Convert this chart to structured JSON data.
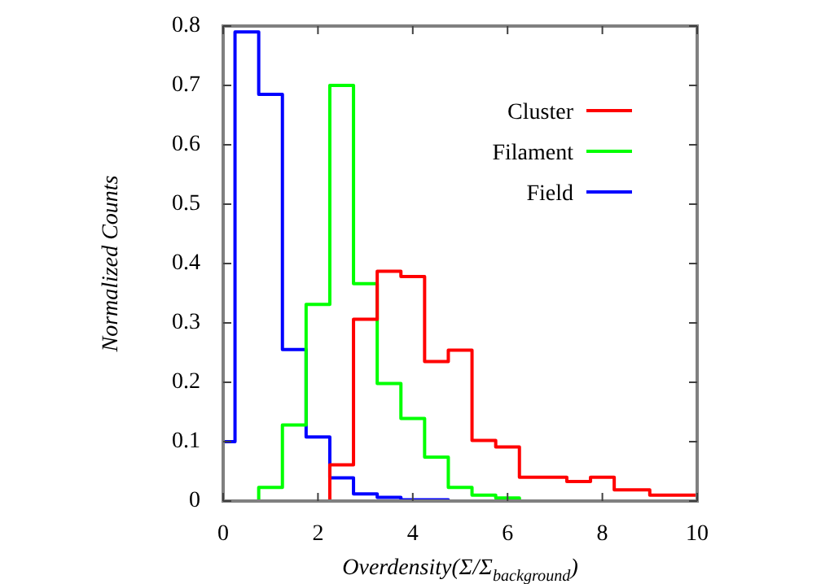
{
  "chart_data": {
    "type": "step",
    "xlabel": "Overdensity(Σ/Σ$_{background}$)",
    "ylabel": "Normalized Counts",
    "xlim": [
      0,
      10
    ],
    "xticks": [
      0,
      2,
      4,
      6,
      8,
      10
    ],
    "ylim": [
      0,
      0.8
    ],
    "yticks": [
      0,
      0.1,
      0.2,
      0.3,
      0.4,
      0.5,
      0.6,
      0.7,
      0.8
    ],
    "grid": false,
    "legend": "top right",
    "series": [
      {
        "name": "Cluster",
        "color": "#ff0000",
        "x": [
          2.25,
          2.25,
          2.75,
          3.25,
          3.75,
          4.25,
          4.75,
          5.25,
          5.75,
          6.25,
          7.25,
          7.75,
          8.25,
          9.0,
          10
        ],
        "values": [
          0,
          0.061,
          0.306,
          0.387,
          0.378,
          0.235,
          0.254,
          0.102,
          0.091,
          0.04,
          0.033,
          0.04,
          0.019,
          0.01,
          0
        ]
      },
      {
        "name": "Filament",
        "color": "#00ff00",
        "x": [
          0.75,
          0.75,
          1.25,
          1.75,
          2.25,
          2.75,
          3.25,
          3.75,
          4.25,
          4.75,
          5.25,
          5.75,
          6.25
        ],
        "values": [
          0,
          0.023,
          0.128,
          0.331,
          0.7,
          0.366,
          0.198,
          0.139,
          0.074,
          0.023,
          0.01,
          0.005,
          0
        ]
      },
      {
        "name": "Field",
        "color": "#0000ff",
        "x": [
          0,
          0.25,
          0.75,
          1.25,
          1.75,
          2.25,
          2.75,
          3.25,
          3.75,
          4.75
        ],
        "values": [
          0.1,
          0.79,
          0.685,
          0.255,
          0.108,
          0.039,
          0.012,
          0.006,
          0.002,
          0
        ]
      }
    ]
  }
}
